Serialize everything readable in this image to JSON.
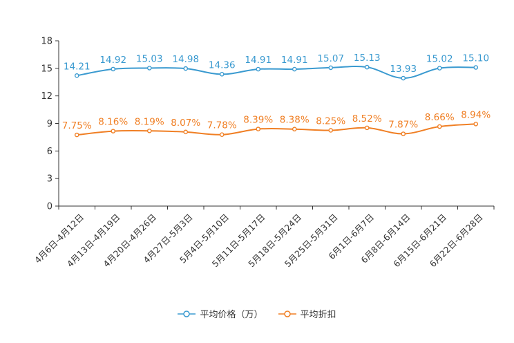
{
  "chart_data": {
    "type": "line",
    "categories": [
      "4月6日-4月12日",
      "4月13日-4月19日",
      "4月20日-4月26日",
      "4月27日-5月3日",
      "5月4日-5月10日",
      "5月11日-5月17日",
      "5月18日-5月24日",
      "5月25日-5月31日",
      "6月1日-6月7日",
      "6月8日-6月14日",
      "6月15日-6月21日",
      "6月22日-6月28日"
    ],
    "series": [
      {
        "name": "平均价格（万）",
        "color": "#3a9ad0",
        "values": [
          14.21,
          14.92,
          15.03,
          14.98,
          14.36,
          14.91,
          14.91,
          15.07,
          15.13,
          13.93,
          15.02,
          15.1
        ],
        "labels": [
          "14.21",
          "14.92",
          "15.03",
          "14.98",
          "14.36",
          "14.91",
          "14.91",
          "15.07",
          "15.13",
          "13.93",
          "15.02",
          "15.10"
        ]
      },
      {
        "name": "平均折扣",
        "color": "#f07f24",
        "values": [
          7.75,
          8.16,
          8.19,
          8.07,
          7.78,
          8.39,
          8.38,
          8.25,
          8.52,
          7.87,
          8.66,
          8.94
        ],
        "labels": [
          "7.75%",
          "8.16%",
          "8.19%",
          "8.07%",
          "7.78%",
          "8.39%",
          "8.38%",
          "8.25%",
          "8.52%",
          "7.87%",
          "8.66%",
          "8.94%"
        ]
      }
    ],
    "yticks": [
      "0",
      "3",
      "6",
      "9",
      "12",
      "15",
      "18"
    ],
    "ylim": [
      0,
      18
    ],
    "title": "",
    "xlabel": "",
    "ylabel": "",
    "legend_position": "bottom-center"
  }
}
